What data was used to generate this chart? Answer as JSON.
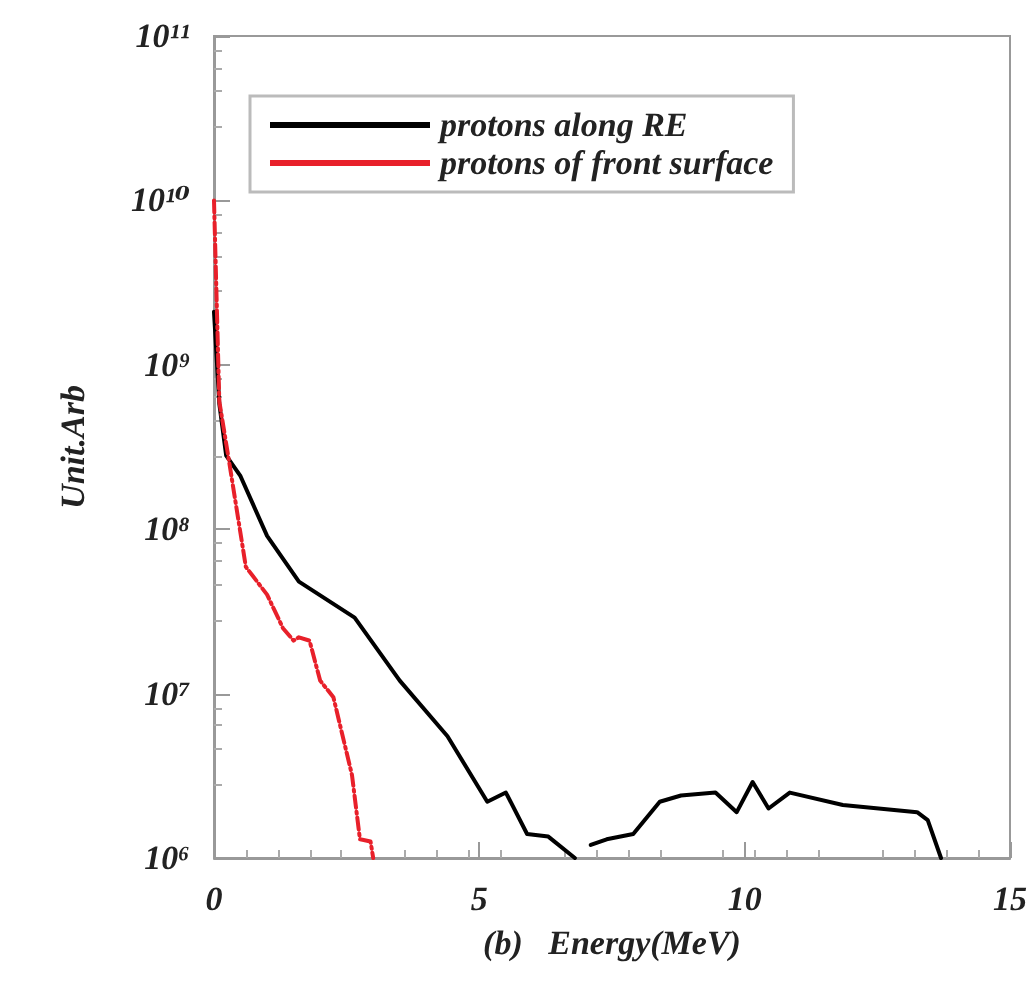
{
  "chart_data": {
    "type": "line",
    "xlabel": "(b)   Energy(MeV)",
    "ylabel": "Unit.Arb",
    "xlim": [
      0,
      15
    ],
    "xticks": [
      0,
      5,
      10,
      15
    ],
    "ylim": [
      1000000,
      100000000000
    ],
    "log": "y",
    "yticks": [
      {
        "value": 1000000,
        "label": "10⁶"
      },
      {
        "value": 10000000,
        "label": "10⁷"
      },
      {
        "value": 100000000,
        "label": "10⁸"
      },
      {
        "value": 1000000000,
        "label": "10⁹"
      },
      {
        "value": 10000000000,
        "label": "10¹⁰"
      },
      {
        "value": 100000000000,
        "label": "10¹¹"
      }
    ],
    "grid": false,
    "legend": "top",
    "marker": "none",
    "series": [
      {
        "name": "protons along RE",
        "color": "#000000",
        "line_style": "solid",
        "x": [
          0,
          0.1,
          0.23,
          0.5,
          1.0,
          1.6,
          2.65,
          3.5,
          4.4,
          5.15,
          5.5,
          5.9,
          6.3,
          6.8,
          6.95,
          7.1,
          7.4,
          7.9,
          8.4,
          8.8,
          9.45,
          9.85,
          10.15,
          10.45,
          10.85,
          11.85,
          13.25,
          13.45,
          13.7
        ],
        "values": [
          2100000000,
          580000000,
          280000000,
          210000000,
          91000000,
          48000000,
          29000000,
          12000000,
          5500000,
          2200000,
          2500000,
          1400000,
          1350000,
          1000000,
          null,
          1200000,
          1300000,
          1400000,
          2200000,
          2400000,
          2500000,
          1900000,
          2900000,
          2000000,
          2500000,
          2100000,
          1900000,
          1700000,
          1000000
        ]
      },
      {
        "name": "protons of front surface",
        "color": "#e8202a",
        "line_style": "dashed",
        "x": [
          0,
          0.1,
          0.3,
          0.6,
          1.0,
          1.3,
          1.5,
          1.6,
          1.8,
          2.0,
          2.25,
          2.6,
          2.75,
          2.95,
          3.0
        ],
        "values": [
          10000000000,
          600000000,
          240000000,
          59000000,
          40000000,
          25000000,
          21000000,
          22000000,
          21000000,
          12000000,
          9500000,
          3200000,
          1300000,
          1260000,
          1000000
        ]
      }
    ]
  }
}
